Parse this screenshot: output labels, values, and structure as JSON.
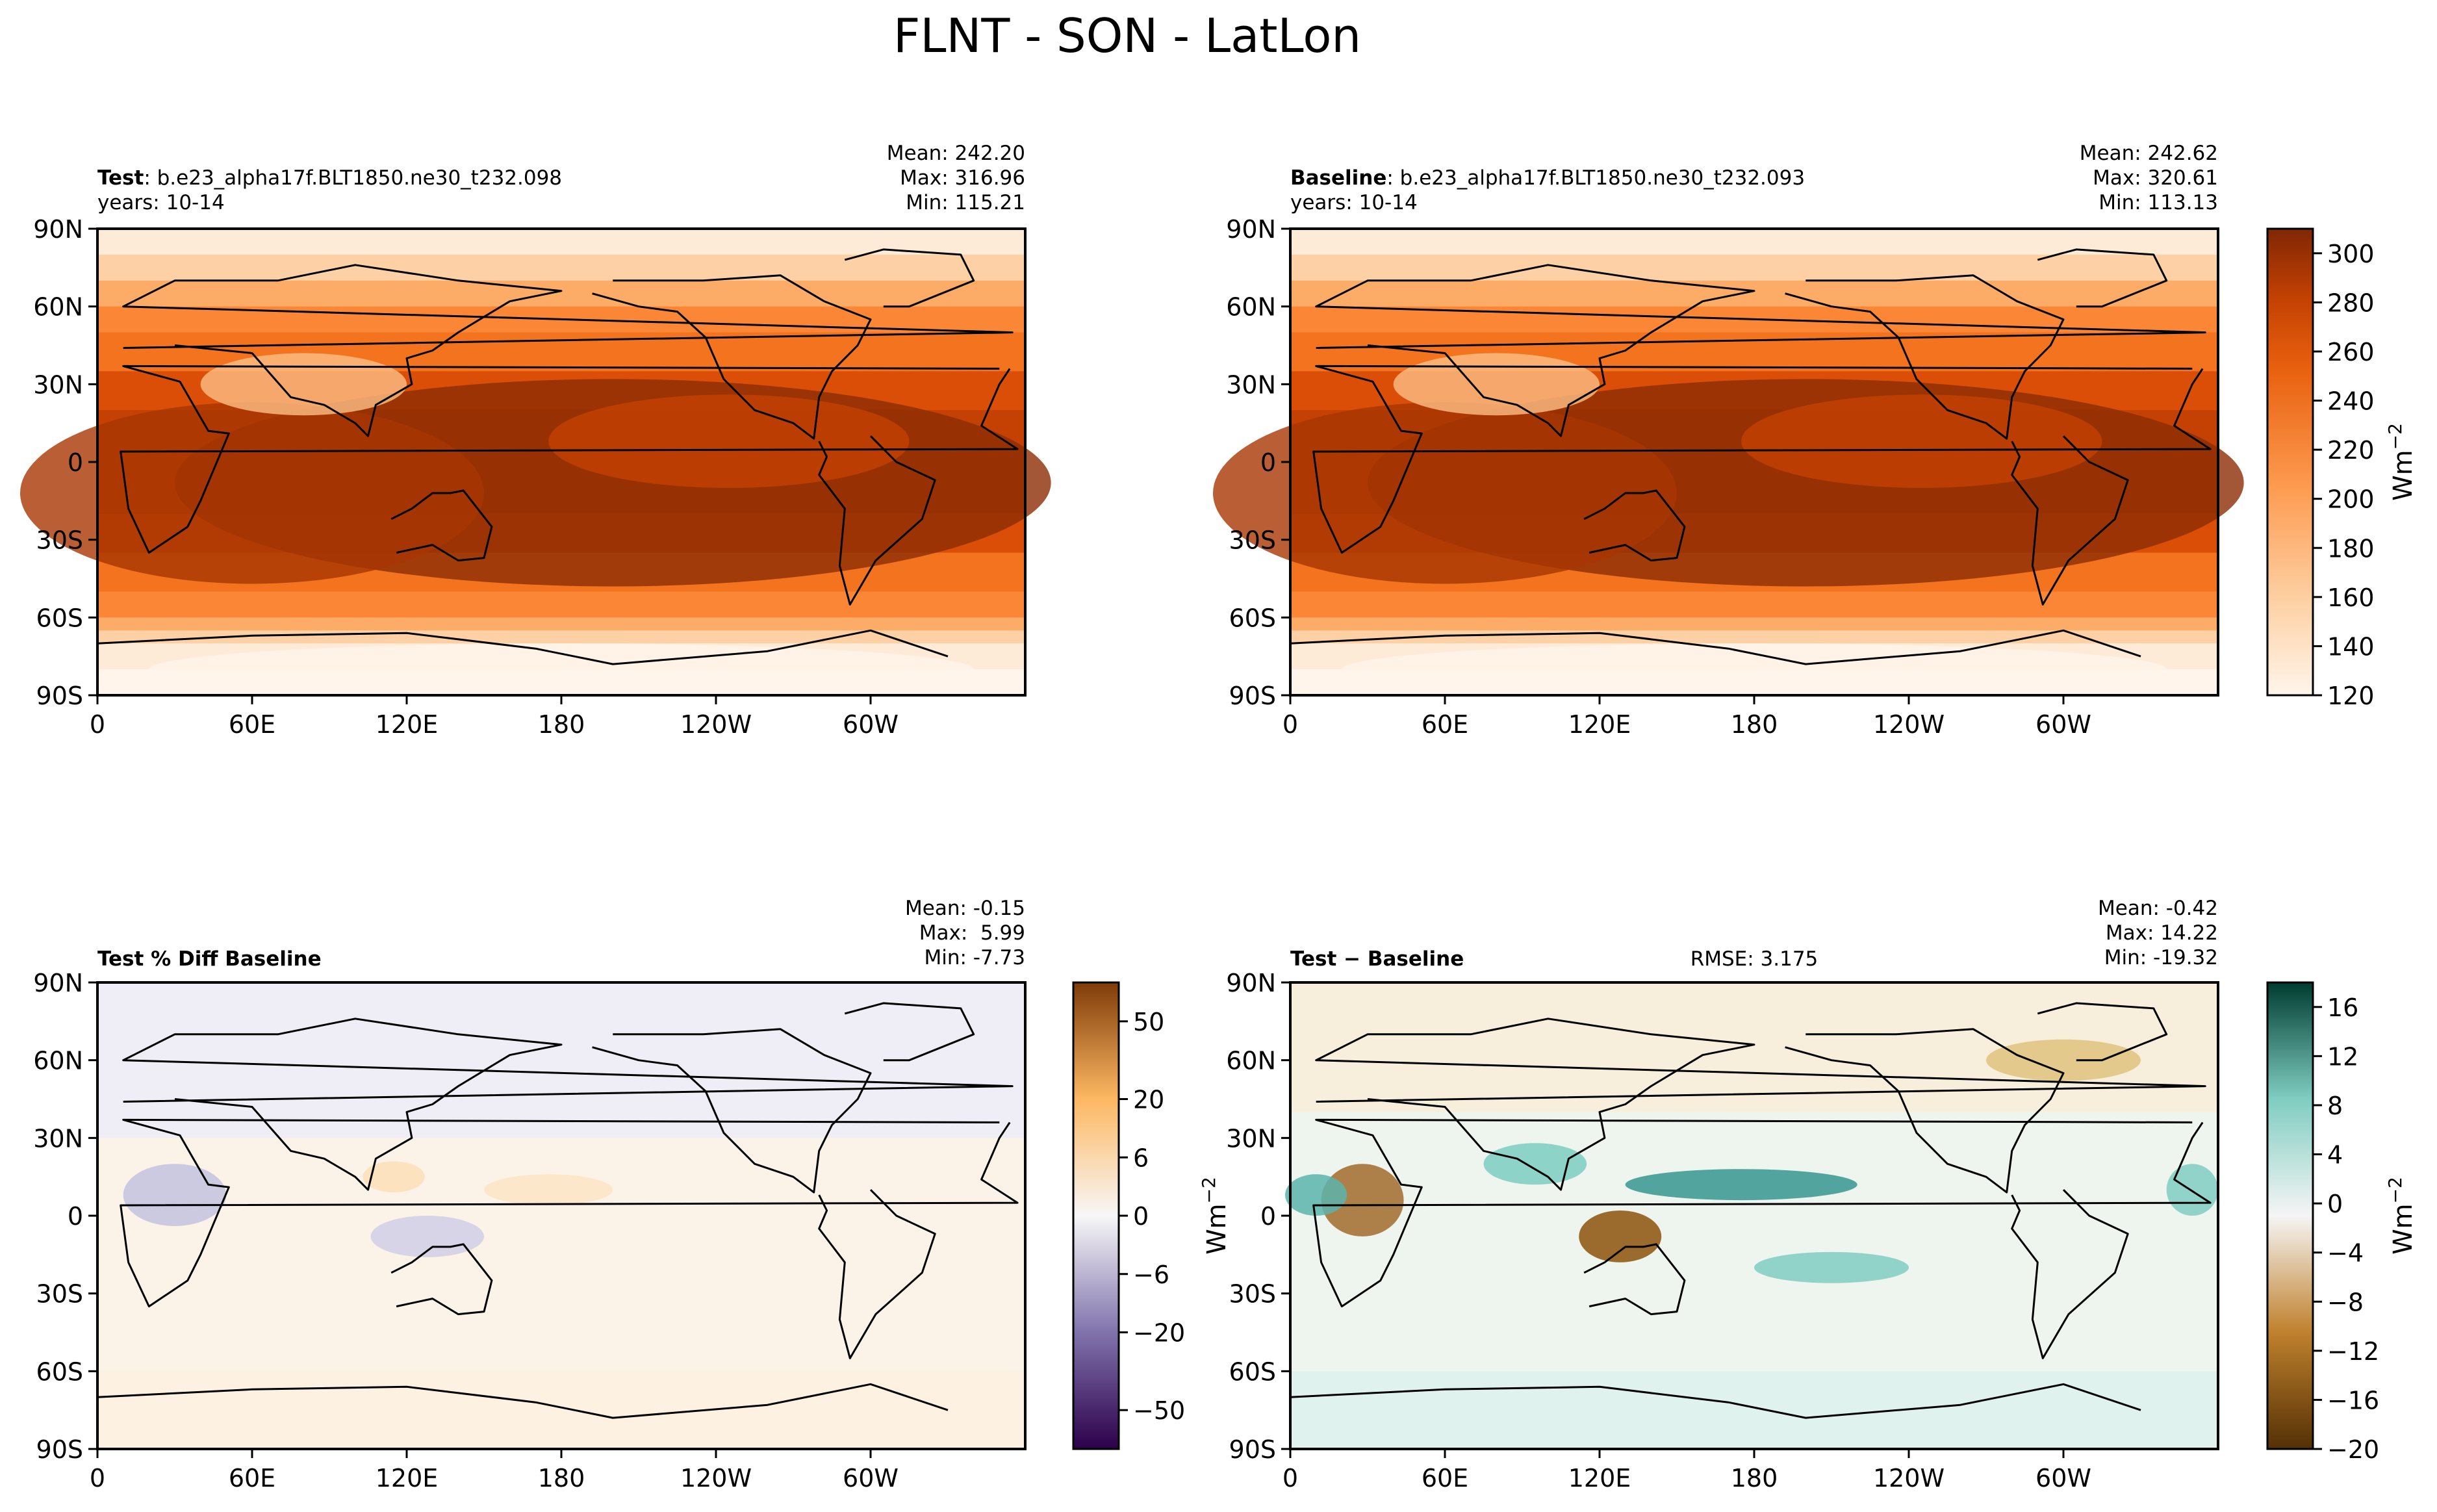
{
  "figure": {
    "title": "FLNT - SON - LatLon",
    "lat_ticks": [
      "90N",
      "60N",
      "30N",
      "0",
      "30S",
      "60S",
      "90S"
    ],
    "lon_ticks": [
      "0",
      "60E",
      "120E",
      "180",
      "120W",
      "60W"
    ]
  },
  "colors": {
    "oranges": [
      "#fff5eb",
      "#feebd7",
      "#fee1c4",
      "#fdd1a5",
      "#fdbf86",
      "#fdac67",
      "#fd9a4f",
      "#fa8636",
      "#f3731f",
      "#e8600f",
      "#da4e07",
      "#c44103",
      "#a73602",
      "#8c2d04",
      "#7f2704"
    ],
    "puor_low": "#2d004b",
    "puor_mid": "#f7f7f7",
    "puor_high": "#7f3b08",
    "brbg_low": "#543005",
    "brbg_mid": "#f5f5f5",
    "brbg_high": "#003c30"
  },
  "chart_data": [
    {
      "type": "heatmap",
      "panel": "test",
      "label_bold": "Test",
      "label_rest": ": b.e23_alpha17f.BLT1850.ne30_t232.098",
      "years": "years: 10-14",
      "stats": {
        "mean": "Mean: 242.20",
        "max": "Max: 316.96",
        "min": "Min: 115.21"
      },
      "colormap": "Oranges",
      "value_range": [
        120,
        310
      ]
    },
    {
      "type": "heatmap",
      "panel": "baseline",
      "label_bold": "Baseline",
      "label_rest": ": b.e23_alpha17f.BLT1850.ne30_t232.093",
      "years": "years: 10-14",
      "stats": {
        "mean": "Mean: 242.62",
        "max": "Max: 320.61",
        "min": "Min: 113.13"
      },
      "colormap": "Oranges",
      "value_range": [
        120,
        310
      ],
      "colorbar": {
        "ticks": [
          "300",
          "280",
          "260",
          "240",
          "220",
          "200",
          "180",
          "160",
          "140",
          "120"
        ],
        "label": "Wm",
        "label_sup": "−2"
      }
    },
    {
      "type": "heatmap",
      "panel": "pct_diff",
      "label_bold": "Test % Diff Baseline",
      "stats": {
        "mean": "Mean: -0.15",
        "max": "Max:  5.99",
        "min": "Min: -7.73"
      },
      "colormap": "PuOr_r",
      "value_range": [
        -60,
        60
      ],
      "colorbar": {
        "ticks": [
          "50",
          "20",
          "6",
          "0",
          "−6",
          "−20",
          "−50"
        ]
      }
    },
    {
      "type": "heatmap",
      "panel": "diff",
      "label_bold": "Test − Baseline",
      "rmse": "RMSE: 3.175",
      "stats": {
        "mean": "Mean: -0.42",
        "max": "Max: 14.22",
        "min": "Min: -19.32"
      },
      "colormap": "BrBG",
      "value_range": [
        -20,
        18
      ],
      "colorbar": {
        "ticks": [
          "16",
          "12",
          "8",
          "4",
          "0",
          "−4",
          "−8",
          "−12",
          "−16",
          "−20"
        ],
        "label": "Wm",
        "label_sup": "−2"
      }
    }
  ]
}
